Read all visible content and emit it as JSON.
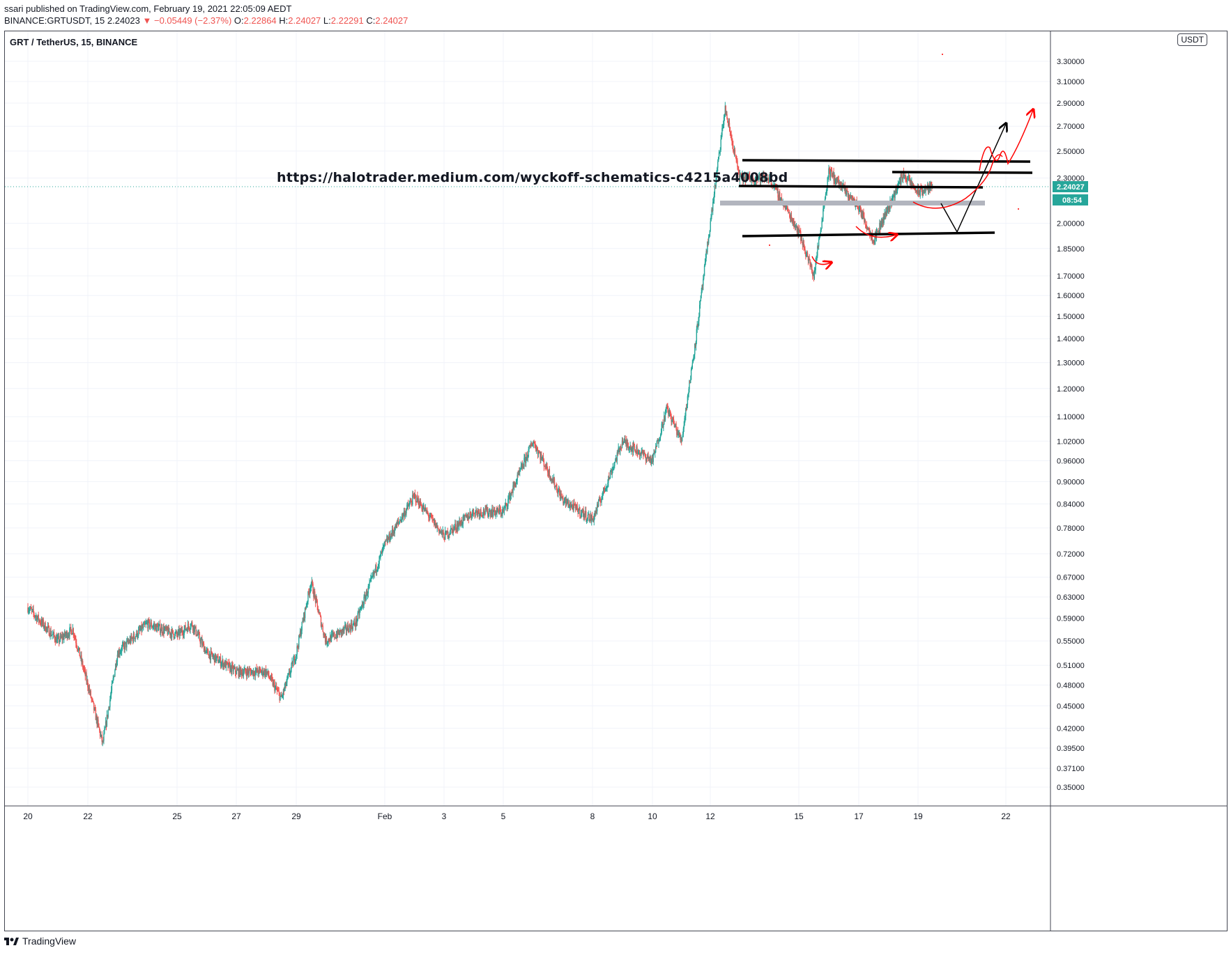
{
  "header": {
    "published": "ssari published on TradingView.com, February 19, 2021 22:05:09 AEDT",
    "symbol": "BINANCE:GRTUSDT, 15",
    "last": "2.24023",
    "change": "▼ −0.05449 (−2.37%)",
    "o_label": "O:",
    "o_value": "2.22864",
    "h_label": "H:",
    "h_value": "2.24027",
    "l_label": "L:",
    "l_value": "2.22291",
    "c_label": "C:",
    "c_value": "2.24027"
  },
  "pane_title": "GRT / TetherUS, 15, BINANCE",
  "currency_badge": "USDT",
  "annotation_url": "https://halotrader.medium.com/wyckoff-schematics-c4215a4008bd",
  "brand": "TradingView",
  "colors": {
    "up": "#26a69a",
    "down": "#ef5350",
    "drawing_red": "#ff0000",
    "drawing_black": "#000000",
    "zone_gray": "#b2b5be"
  },
  "chart_data": {
    "type": "candlestick",
    "scale": "log",
    "price_axis_ticks": [
      "3.30000",
      "3.10000",
      "2.90000",
      "2.70000",
      "2.50000",
      "2.30000",
      "2.00000",
      "1.85000",
      "1.70000",
      "1.60000",
      "1.50000",
      "1.40000",
      "1.30000",
      "1.20000",
      "1.10000",
      "1.02000",
      "0.96000",
      "0.90000",
      "0.84000",
      "0.78000",
      "0.72000",
      "0.67000",
      "0.63000",
      "0.59000",
      "0.55000",
      "0.51000",
      "0.48000",
      "0.45000",
      "0.42000",
      "0.39500",
      "0.37100",
      "0.35000"
    ],
    "last_price_label": "2.24027",
    "countdown_label": "08:54",
    "time_axis_ticks": [
      "20",
      "22",
      "25",
      "27",
      "29",
      "Feb",
      "3",
      "5",
      "8",
      "10",
      "12",
      "15",
      "17",
      "19",
      "22"
    ],
    "price_path": [
      {
        "t": "20",
        "v": 0.61
      },
      {
        "t": "21",
        "v": 0.55
      },
      {
        "t": "21.5",
        "v": 0.57
      },
      {
        "t": "22",
        "v": 0.48
      },
      {
        "t": "22.5",
        "v": 0.4
      },
      {
        "t": "23",
        "v": 0.53
      },
      {
        "t": "24",
        "v": 0.58
      },
      {
        "t": "25",
        "v": 0.56
      },
      {
        "t": "25.5",
        "v": 0.58
      },
      {
        "t": "26",
        "v": 0.53
      },
      {
        "t": "27",
        "v": 0.5
      },
      {
        "t": "28",
        "v": 0.5
      },
      {
        "t": "28.5",
        "v": 0.46
      },
      {
        "t": "29",
        "v": 0.53
      },
      {
        "t": "29.5",
        "v": 0.66
      },
      {
        "t": "30",
        "v": 0.55
      },
      {
        "t": "31",
        "v": 0.58
      },
      {
        "t": "Feb",
        "v": 0.74
      },
      {
        "t": "2",
        "v": 0.86
      },
      {
        "t": "3",
        "v": 0.76
      },
      {
        "t": "4",
        "v": 0.82
      },
      {
        "t": "5",
        "v": 0.82
      },
      {
        "t": "6",
        "v": 1.02
      },
      {
        "t": "7",
        "v": 0.85
      },
      {
        "t": "8",
        "v": 0.8
      },
      {
        "t": "8.5",
        "v": 0.9
      },
      {
        "t": "9",
        "v": 1.02
      },
      {
        "t": "10",
        "v": 0.96
      },
      {
        "t": "10.5",
        "v": 1.13
      },
      {
        "t": "11",
        "v": 1.02
      },
      {
        "t": "11.5",
        "v": 1.4
      },
      {
        "t": "12",
        "v": 2.0
      },
      {
        "t": "12.5",
        "v": 2.85
      },
      {
        "t": "13",
        "v": 2.3
      },
      {
        "t": "14",
        "v": 2.3
      },
      {
        "t": "15",
        "v": 1.95
      },
      {
        "t": "15.5",
        "v": 1.7
      },
      {
        "t": "16",
        "v": 2.35
      },
      {
        "t": "17",
        "v": 2.1
      },
      {
        "t": "17.5",
        "v": 1.9
      },
      {
        "t": "18",
        "v": 2.1
      },
      {
        "t": "18.5",
        "v": 2.33
      },
      {
        "t": "19",
        "v": 2.2
      },
      {
        "t": "19.5",
        "v": 2.24
      }
    ]
  }
}
